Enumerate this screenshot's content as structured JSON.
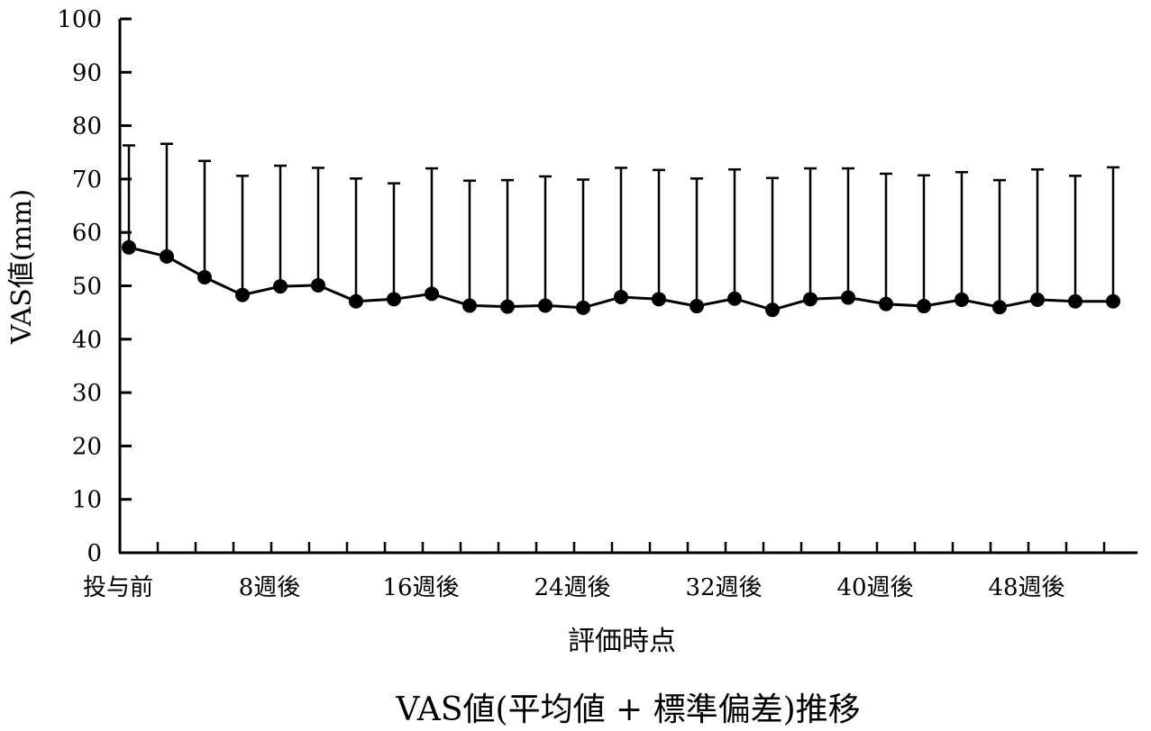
{
  "chart_data": {
    "type": "line",
    "title": "VAS値(平均値 + 標準偏差)推移",
    "xlabel": "評価時点",
    "ylabel": "VAS値(mm)",
    "ylim": [
      0,
      100
    ],
    "y_ticks": [
      0,
      10,
      20,
      30,
      40,
      50,
      60,
      70,
      80,
      90,
      100
    ],
    "x_tick_labels": [
      {
        "index": 0,
        "label": "投与前"
      },
      {
        "index": 4,
        "label": "8週後"
      },
      {
        "index": 8,
        "label": "16週後"
      },
      {
        "index": 12,
        "label": "24週後"
      },
      {
        "index": 16,
        "label": "32週後"
      },
      {
        "index": 20,
        "label": "40週後"
      },
      {
        "index": 24,
        "label": "48週後"
      }
    ],
    "error_bars": "upper standard deviation",
    "grid": false,
    "legend": "none",
    "series": [
      {
        "mean": [
          57.2,
          55.5,
          51.6,
          48.3,
          49.9,
          50.1,
          47.1,
          47.5,
          48.5,
          46.3,
          46.1,
          46.3,
          45.9,
          47.9,
          47.5,
          46.2,
          47.6,
          45.5,
          47.5,
          47.8,
          46.6,
          46.2,
          47.4,
          46.0,
          47.4,
          47.1,
          47.1
        ],
        "upper": [
          76.3,
          76.6,
          73.4,
          70.6,
          72.5,
          72.1,
          70.1,
          69.2,
          72.0,
          69.7,
          69.8,
          70.5,
          69.9,
          72.1,
          71.7,
          70.1,
          71.8,
          70.2,
          72.0,
          72.0,
          71.0,
          70.7,
          71.3,
          69.8,
          71.8,
          70.6,
          72.2
        ]
      }
    ]
  }
}
